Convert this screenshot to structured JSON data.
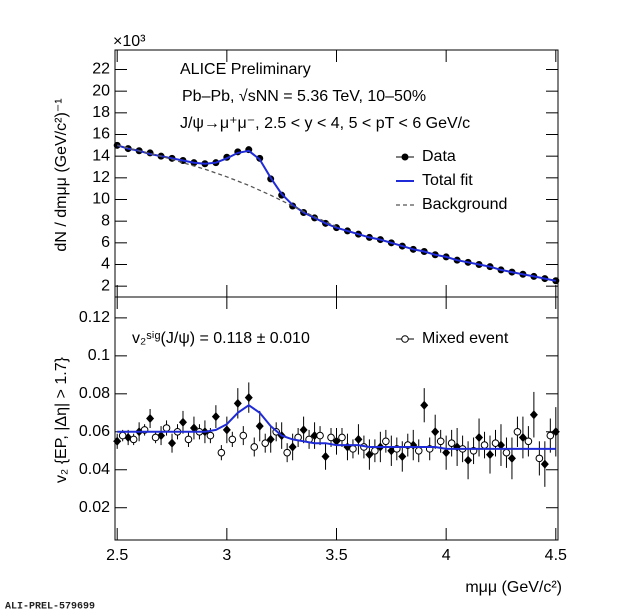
{
  "chart_data": [
    {
      "type": "line",
      "multiplier": "×10³",
      "ylabel": "dN / dmμμ (GeV/c²)⁻¹",
      "annotations": [
        "ALICE Preliminary",
        "Pb–Pb,  √sNN = 5.36 TeV, 10–50%",
        "J/ψ→μ⁺μ⁻, 2.5 < y < 4, 5 < pT < 6 GeV/c"
      ],
      "xlim": [
        2.49,
        4.51
      ],
      "xticks": [
        2.5,
        3,
        3.5,
        4,
        4.5
      ],
      "xtick_labels": false,
      "ylim": [
        1,
        23.8
      ],
      "yticks": [
        2,
        4,
        6,
        8,
        10,
        12,
        14,
        16,
        18,
        20,
        22
      ],
      "legend": "upper right",
      "series": [
        {
          "name": "Data",
          "color": "#000000",
          "marker": "filled-circle",
          "x": [
            2.5,
            2.55,
            2.6,
            2.65,
            2.7,
            2.75,
            2.8,
            2.85,
            2.9,
            2.95,
            3.0,
            3.05,
            3.1,
            3.15,
            3.2,
            3.25,
            3.3,
            3.35,
            3.4,
            3.45,
            3.5,
            3.55,
            3.6,
            3.65,
            3.7,
            3.75,
            3.8,
            3.85,
            3.9,
            3.95,
            4.0,
            4.05,
            4.1,
            4.15,
            4.2,
            4.25,
            4.3,
            4.35,
            4.4,
            4.45,
            4.5
          ],
          "values": [
            15.0,
            14.7,
            14.5,
            14.3,
            14.0,
            13.8,
            13.6,
            13.4,
            13.3,
            13.4,
            13.9,
            14.4,
            14.6,
            13.8,
            11.9,
            10.4,
            9.4,
            8.8,
            8.3,
            7.8,
            7.4,
            7.1,
            6.8,
            6.5,
            6.3,
            6.0,
            5.7,
            5.4,
            5.2,
            4.9,
            4.7,
            4.4,
            4.2,
            4.0,
            3.8,
            3.5,
            3.3,
            3.1,
            2.9,
            2.7,
            2.5
          ]
        },
        {
          "name": "Total fit",
          "color": "#1f2bd6",
          "line": "solid",
          "x": [
            2.5,
            2.55,
            2.6,
            2.65,
            2.7,
            2.75,
            2.8,
            2.85,
            2.9,
            2.95,
            3.0,
            3.05,
            3.1,
            3.15,
            3.2,
            3.25,
            3.3,
            3.35,
            3.4,
            3.45,
            3.5,
            3.55,
            3.6,
            3.65,
            3.7,
            3.75,
            3.8,
            3.85,
            3.9,
            3.95,
            4.0,
            4.05,
            4.1,
            4.15,
            4.2,
            4.25,
            4.3,
            4.35,
            4.4,
            4.45,
            4.5
          ],
          "values": [
            15.0,
            14.7,
            14.5,
            14.2,
            14.0,
            13.8,
            13.6,
            13.4,
            13.3,
            13.4,
            13.8,
            14.3,
            14.5,
            13.7,
            12.0,
            10.5,
            9.5,
            8.8,
            8.3,
            7.8,
            7.4,
            7.1,
            6.8,
            6.5,
            6.3,
            6.0,
            5.7,
            5.4,
            5.2,
            4.9,
            4.7,
            4.4,
            4.2,
            4.0,
            3.8,
            3.5,
            3.3,
            3.1,
            2.9,
            2.7,
            2.5
          ]
        },
        {
          "name": "Background",
          "color": "#555555",
          "line": "dashed",
          "x": [
            2.5,
            2.6,
            2.7,
            2.8,
            2.9,
            3.0,
            3.1,
            3.2,
            3.3,
            3.4,
            3.5
          ],
          "values": [
            15.0,
            14.5,
            14.0,
            13.4,
            12.8,
            12.1,
            11.3,
            10.4,
            9.4,
            8.4,
            7.5
          ]
        }
      ]
    },
    {
      "type": "line",
      "ylabel": "v₂ {EP, |Δη| > 1.7}",
      "xlabel": "mμμ (GeV/c²)",
      "annotations": [
        "v₂ˢⁱᵍ(J/ψ) = 0.118 ± 0.010"
      ],
      "xlim": [
        2.49,
        4.51
      ],
      "xticks": [
        2.5,
        3,
        3.5,
        4,
        4.5
      ],
      "xtick_labels": true,
      "ylim": [
        0.003,
        0.131
      ],
      "yticks": [
        0.02,
        0.04,
        0.06,
        0.08,
        0.1,
        0.12
      ],
      "legend": "upper right",
      "series": [
        {
          "color": "#000000",
          "marker": "filled-diamond",
          "x": [
            2.5,
            2.55,
            2.6,
            2.65,
            2.7,
            2.75,
            2.8,
            2.85,
            2.9,
            2.95,
            3.0,
            3.05,
            3.1,
            3.15,
            3.2,
            3.25,
            3.3,
            3.35,
            3.4,
            3.45,
            3.5,
            3.55,
            3.6,
            3.65,
            3.7,
            3.75,
            3.8,
            3.85,
            3.9,
            3.95,
            4.0,
            4.05,
            4.1,
            4.15,
            4.2,
            4.25,
            4.3,
            4.35,
            4.4,
            4.45,
            4.5
          ],
          "values": [
            0.055,
            0.057,
            0.06,
            0.067,
            0.058,
            0.054,
            0.065,
            0.062,
            0.06,
            0.068,
            0.061,
            0.075,
            0.078,
            0.063,
            0.056,
            0.058,
            0.052,
            0.061,
            0.058,
            0.047,
            0.055,
            0.052,
            0.056,
            0.048,
            0.052,
            0.05,
            0.047,
            0.053,
            0.074,
            0.06,
            0.049,
            0.052,
            0.045,
            0.057,
            0.048,
            0.053,
            0.046,
            0.057,
            0.069,
            0.043,
            0.06
          ],
          "errors": [
            0.004,
            0.004,
            0.005,
            0.005,
            0.005,
            0.005,
            0.006,
            0.006,
            0.006,
            0.006,
            0.007,
            0.008,
            0.008,
            0.008,
            0.007,
            0.007,
            0.007,
            0.007,
            0.007,
            0.007,
            0.007,
            0.007,
            0.008,
            0.008,
            0.008,
            0.008,
            0.008,
            0.008,
            0.009,
            0.009,
            0.009,
            0.01,
            0.01,
            0.01,
            0.01,
            0.011,
            0.011,
            0.011,
            0.012,
            0.012,
            0.013
          ]
        },
        {
          "name": "Mixed event",
          "color": "#000000",
          "marker": "open-circle",
          "x": [
            2.525,
            2.575,
            2.625,
            2.675,
            2.725,
            2.775,
            2.825,
            2.875,
            2.925,
            2.975,
            3.025,
            3.075,
            3.125,
            3.175,
            3.225,
            3.275,
            3.325,
            3.375,
            3.425,
            3.475,
            3.525,
            3.575,
            3.625,
            3.675,
            3.725,
            3.775,
            3.825,
            3.875,
            3.925,
            3.975,
            4.025,
            4.075,
            4.125,
            4.175,
            4.225,
            4.275,
            4.325,
            4.375,
            4.425,
            4.475
          ],
          "values": [
            0.058,
            0.056,
            0.061,
            0.057,
            0.062,
            0.06,
            0.056,
            0.06,
            0.058,
            0.049,
            0.056,
            0.058,
            0.052,
            0.054,
            0.06,
            0.049,
            0.057,
            0.056,
            0.058,
            0.057,
            0.057,
            0.051,
            0.052,
            0.05,
            0.055,
            0.051,
            0.053,
            0.05,
            0.051,
            0.055,
            0.054,
            0.051,
            0.05,
            0.053,
            0.054,
            0.049,
            0.06,
            0.055,
            0.046,
            0.058
          ],
          "errors": [
            0.003,
            0.003,
            0.003,
            0.003,
            0.004,
            0.004,
            0.004,
            0.004,
            0.004,
            0.004,
            0.004,
            0.005,
            0.005,
            0.005,
            0.005,
            0.005,
            0.005,
            0.005,
            0.005,
            0.005,
            0.005,
            0.005,
            0.006,
            0.006,
            0.006,
            0.006,
            0.006,
            0.006,
            0.006,
            0.006,
            0.007,
            0.007,
            0.007,
            0.007,
            0.007,
            0.008,
            0.008,
            0.008,
            0.009,
            0.009
          ]
        },
        {
          "color": "#1f2bd6",
          "line": "solid",
          "x": [
            2.5,
            2.55,
            2.6,
            2.65,
            2.7,
            2.75,
            2.8,
            2.85,
            2.9,
            2.95,
            3.0,
            3.05,
            3.1,
            3.15,
            3.2,
            3.25,
            3.3,
            3.35,
            3.4,
            3.45,
            3.5,
            3.55,
            3.6,
            3.65,
            3.7,
            3.75,
            3.8,
            3.85,
            3.9,
            3.95,
            4.0,
            4.05,
            4.1,
            4.15,
            4.2,
            4.25,
            4.3,
            4.35,
            4.4,
            4.45,
            4.5
          ],
          "values": [
            0.06,
            0.06,
            0.06,
            0.06,
            0.06,
            0.06,
            0.06,
            0.06,
            0.06,
            0.061,
            0.064,
            0.07,
            0.074,
            0.07,
            0.063,
            0.058,
            0.056,
            0.055,
            0.054,
            0.054,
            0.053,
            0.053,
            0.053,
            0.052,
            0.052,
            0.052,
            0.052,
            0.052,
            0.052,
            0.052,
            0.051,
            0.051,
            0.051,
            0.051,
            0.051,
            0.051,
            0.051,
            0.051,
            0.051,
            0.051,
            0.051
          ]
        }
      ]
    }
  ],
  "footer": "ALI-PREL-579699"
}
